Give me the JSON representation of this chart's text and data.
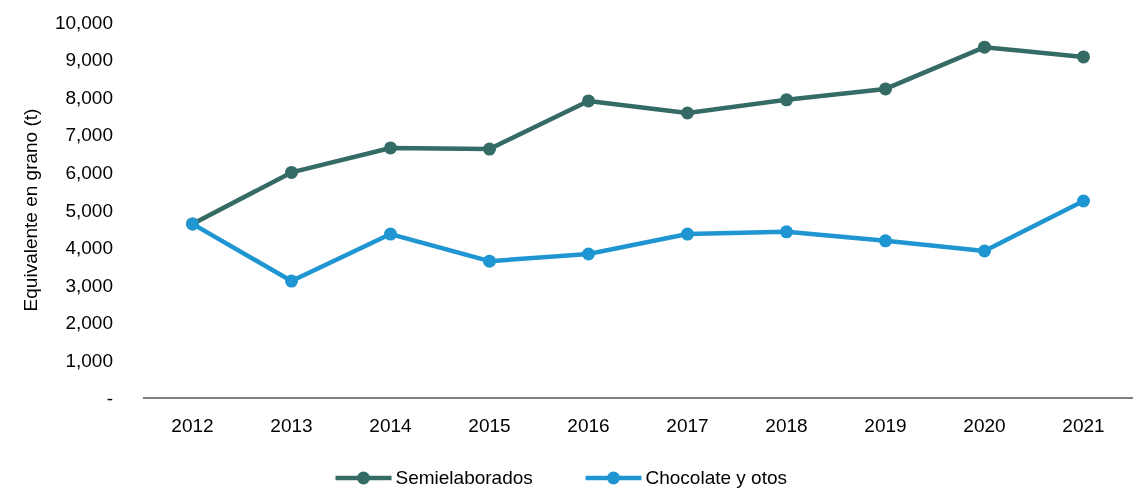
{
  "chart_data": {
    "type": "line",
    "ylabel": "Equivalente en grano (t)",
    "categories": [
      "2012",
      "2013",
      "2014",
      "2015",
      "2016",
      "2017",
      "2018",
      "2019",
      "2020",
      "2021"
    ],
    "series": [
      {
        "name": "Semielaborados",
        "color": "#346b65",
        "values": [
          4630,
          6000,
          6650,
          6620,
          7900,
          7580,
          7930,
          8220,
          9330,
          9070
        ]
      },
      {
        "name": "Chocolate y otos",
        "color": "#1f96d2",
        "values": [
          4630,
          3110,
          4360,
          3640,
          3830,
          4360,
          4420,
          4180,
          3910,
          5240
        ]
      }
    ],
    "ylim": [
      0,
      10000
    ],
    "yticks": [
      {
        "value": 0,
        "label": "-"
      },
      {
        "value": 1000,
        "label": "1,000"
      },
      {
        "value": 2000,
        "label": "2,000"
      },
      {
        "value": 3000,
        "label": "3,000"
      },
      {
        "value": 4000,
        "label": "4,000"
      },
      {
        "value": 5000,
        "label": "5,000"
      },
      {
        "value": 6000,
        "label": "6,000"
      },
      {
        "value": 7000,
        "label": "7,000"
      },
      {
        "value": 8000,
        "label": "8,000"
      },
      {
        "value": 9000,
        "label": "9,000"
      },
      {
        "value": 10000,
        "label": "10,000"
      }
    ],
    "grid": false,
    "legend": "bottom",
    "marker": "circle",
    "line_style": "solid"
  }
}
